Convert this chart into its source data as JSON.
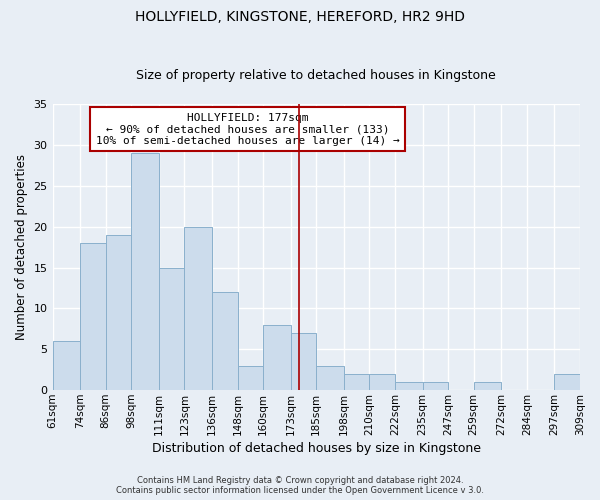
{
  "title": "HOLLYFIELD, KINGSTONE, HEREFORD, HR2 9HD",
  "subtitle": "Size of property relative to detached houses in Kingstone",
  "xlabel": "Distribution of detached houses by size in Kingstone",
  "ylabel": "Number of detached properties",
  "bin_labels": [
    "61sqm",
    "74sqm",
    "86sqm",
    "98sqm",
    "111sqm",
    "123sqm",
    "136sqm",
    "148sqm",
    "160sqm",
    "173sqm",
    "185sqm",
    "198sqm",
    "210sqm",
    "222sqm",
    "235sqm",
    "247sqm",
    "259sqm",
    "272sqm",
    "284sqm",
    "297sqm",
    "309sqm"
  ],
  "bin_edges": [
    61,
    74,
    86,
    98,
    111,
    123,
    136,
    148,
    160,
    173,
    185,
    198,
    210,
    222,
    235,
    247,
    259,
    272,
    284,
    297,
    309
  ],
  "counts": [
    6,
    18,
    19,
    29,
    15,
    20,
    12,
    3,
    8,
    7,
    3,
    2,
    2,
    1,
    1,
    0,
    1,
    0,
    0,
    2
  ],
  "bar_color": "#ccdcec",
  "bar_edgecolor": "#8ab0cc",
  "vline_x": 177,
  "vline_color": "#aa0000",
  "ylim": [
    0,
    35
  ],
  "yticks": [
    0,
    5,
    10,
    15,
    20,
    25,
    30,
    35
  ],
  "annotation_title": "HOLLYFIELD: 177sqm",
  "annotation_line1": "← 90% of detached houses are smaller (133)",
  "annotation_line2": "10% of semi-detached houses are larger (14) →",
  "annotation_box_color": "#ffffff",
  "annotation_box_edgecolor": "#aa0000",
  "footer1": "Contains HM Land Registry data © Crown copyright and database right 2024.",
  "footer2": "Contains public sector information licensed under the Open Government Licence v 3.0.",
  "background_color": "#e8eef5",
  "grid_color": "#ffffff",
  "title_fontsize": 10,
  "subtitle_fontsize": 9,
  "xlabel_fontsize": 9,
  "ylabel_fontsize": 8.5,
  "tick_fontsize": 7.5,
  "ytick_fontsize": 8,
  "footer_fontsize": 6,
  "ann_fontsize": 8
}
